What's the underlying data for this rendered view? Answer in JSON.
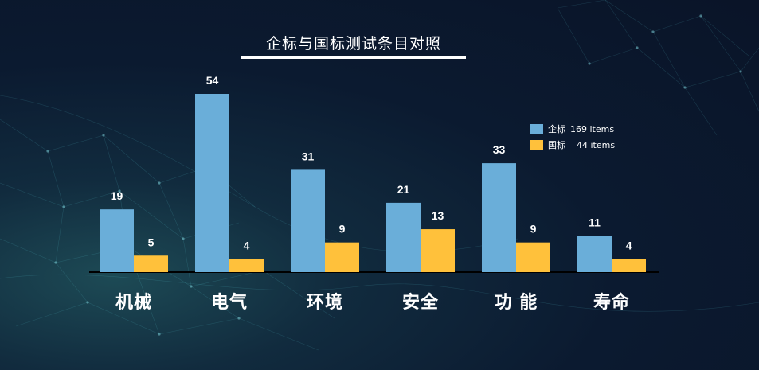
{
  "chart_data": {
    "type": "bar",
    "title": "企标与国标测试条目对照",
    "categories": [
      "机械",
      "电气",
      "环境",
      "安全",
      "功 能",
      "寿命"
    ],
    "series": [
      {
        "name": "企标",
        "total": "169 items",
        "color": "#6aaed9",
        "values": [
          19,
          54,
          31,
          21,
          33,
          11
        ]
      },
      {
        "name": "国标",
        "total": "44 items",
        "color": "#ffc13b",
        "values": [
          5,
          4,
          9,
          13,
          9,
          4
        ]
      }
    ],
    "xlabel": "",
    "ylabel": "",
    "ylim": [
      0,
      54
    ],
    "grid": false,
    "legend": "top-right"
  }
}
